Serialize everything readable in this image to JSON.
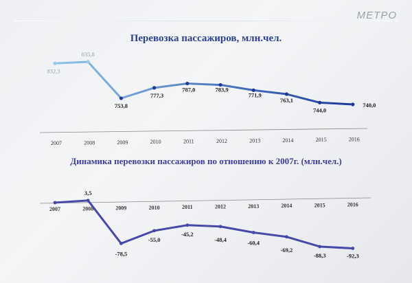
{
  "logo": "МЕТРО",
  "chart_data": [
    {
      "type": "line",
      "title": "Перевозка пассажиров, млн.чел.",
      "categories": [
        "2007",
        "2008",
        "2009",
        "2010",
        "2011",
        "2012",
        "2013",
        "2014",
        "2015",
        "2016"
      ],
      "values": [
        832.3,
        835.8,
        753.8,
        777.3,
        787.0,
        783.9,
        771.9,
        763.1,
        744.0,
        740.0
      ],
      "labels": [
        "832,3",
        "835,8",
        "753,8",
        "777,3",
        "787,0",
        "783,9",
        "771,9",
        "763,1",
        "744,0",
        "740,0"
      ],
      "line_color_start": "#8fc4e8",
      "line_color_end": "#1b3a9c",
      "grid": false
    },
    {
      "type": "line",
      "title": "Динамика перевозки пассажиров по отношению к 2007г. (млн.чел.)",
      "categories": [
        "2007",
        "2008",
        "2009",
        "2010",
        "2011",
        "2012",
        "2013",
        "2014",
        "2015",
        "2016"
      ],
      "values": [
        0,
        3.5,
        -78.5,
        -55.0,
        -45.2,
        -48.4,
        -60.4,
        -69.2,
        -88.3,
        -92.3
      ],
      "labels": [
        "",
        "3,5",
        "-78,5",
        "-55,0",
        "-45,2",
        "-48,4",
        "-60,4",
        "-69,2",
        "-88,3",
        "-92,3"
      ],
      "line_color": "#4649a8",
      "grid": false
    }
  ]
}
